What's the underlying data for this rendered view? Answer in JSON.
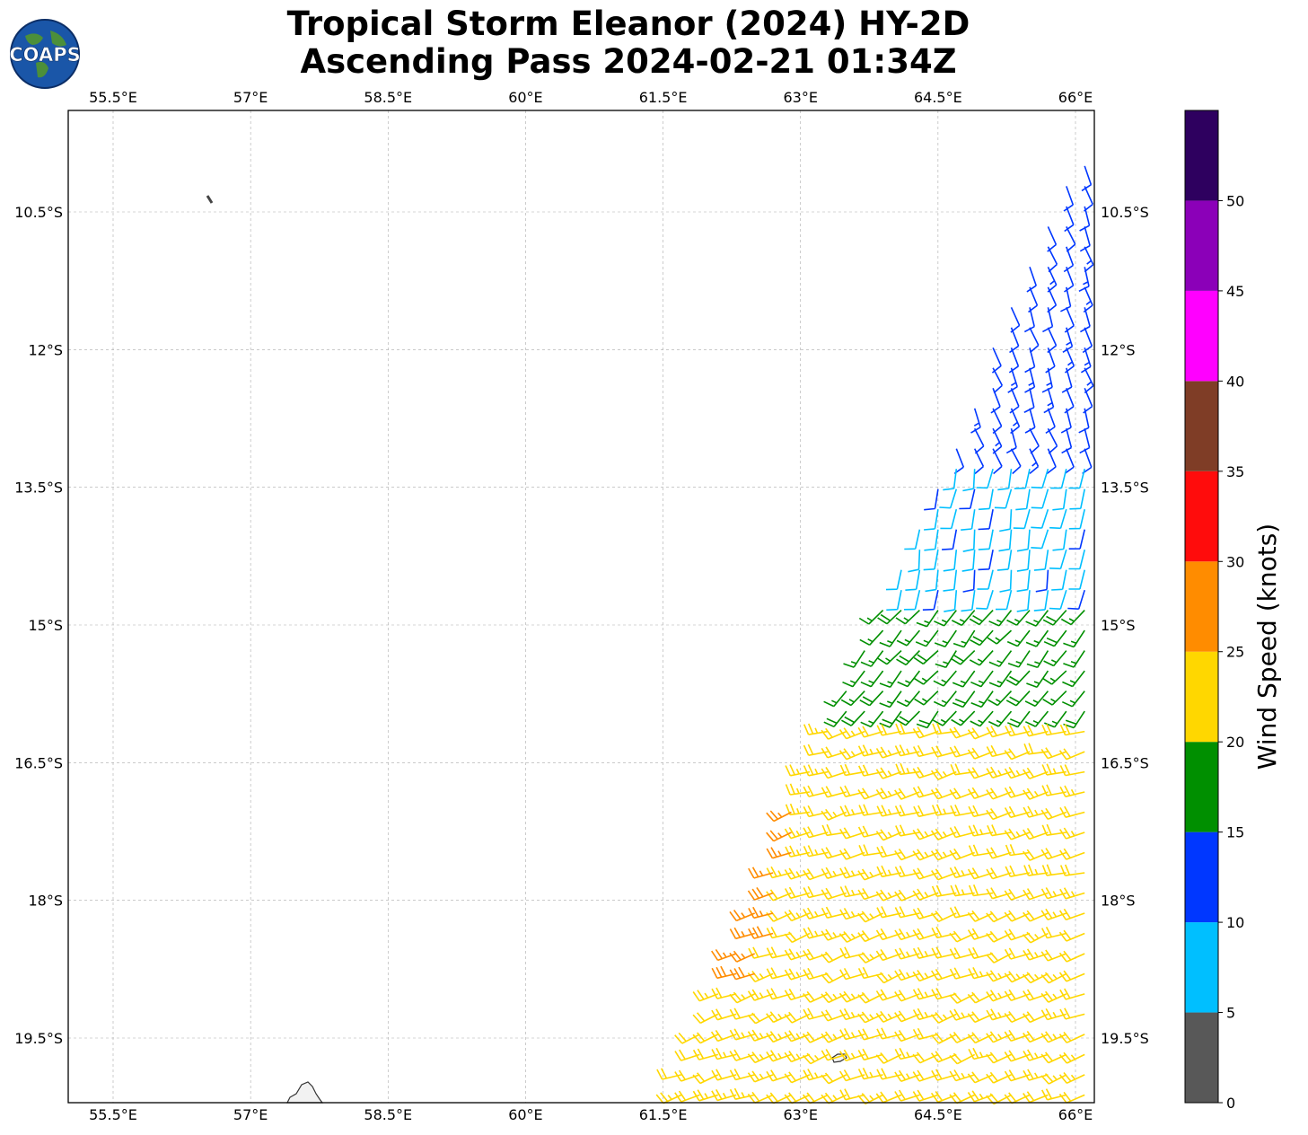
{
  "title": {
    "line1": "Tropical Storm Eleanor (2024) HY-2D",
    "line2": "Ascending Pass 2024-02-21 01:34Z"
  },
  "logo": {
    "text": "COAPS",
    "icon": "globe-icon"
  },
  "map": {
    "lon_range": [
      54.75,
      66.2
    ],
    "lat_range": [
      -20.7,
      -9.9
    ],
    "lon_ticks": [
      55.5,
      57,
      58.5,
      60,
      61.5,
      63,
      64.5,
      66
    ],
    "lon_tick_labels": [
      "55.5°E",
      "57°E",
      "58.5°E",
      "60°E",
      "61.5°E",
      "63°E",
      "64.5°E",
      "66°E"
    ],
    "lat_ticks": [
      -10.5,
      -12,
      -13.5,
      -15,
      -16.5,
      -18,
      -19.5
    ],
    "lat_tick_labels": [
      "10.5°S",
      "12°S",
      "13.5°S",
      "15°S",
      "16.5°S",
      "18°S",
      "19.5°S"
    ],
    "grid": true
  },
  "colorbar": {
    "label": "Wind Speed (knots)",
    "bins": [
      {
        "from": 0,
        "to": 5,
        "color": "#585858"
      },
      {
        "from": 5,
        "to": 10,
        "color": "#00bfff"
      },
      {
        "from": 10,
        "to": 15,
        "color": "#0037ff"
      },
      {
        "from": 15,
        "to": 20,
        "color": "#008f00"
      },
      {
        "from": 20,
        "to": 25,
        "color": "#ffd700"
      },
      {
        "from": 25,
        "to": 30,
        "color": "#ff8c00"
      },
      {
        "from": 30,
        "to": 35,
        "color": "#ff0c0c"
      },
      {
        "from": 35,
        "to": 40,
        "color": "#7f3d26"
      },
      {
        "from": 40,
        "to": 45,
        "color": "#ff00ff"
      },
      {
        "from": 45,
        "to": 50,
        "color": "#8b00b8"
      },
      {
        "from": 50,
        "to": 55,
        "color": "#2e005f"
      }
    ],
    "tick_labels": [
      "0",
      "5",
      "10",
      "15",
      "20",
      "25",
      "30",
      "35",
      "40",
      "45",
      "50"
    ]
  },
  "chart_data": {
    "type": "wind_barbs",
    "units": "knots",
    "swath": {
      "north_lat": -9.9,
      "south_lat": -20.7,
      "west_lon_at_north": 66.0,
      "west_lon_at_south": 61.3,
      "east_lon": 66.2
    },
    "wind_regions": [
      {
        "lat_range": [
          -9.9,
          -13.2
        ],
        "speed_kt": 12,
        "direction_deg": 160
      },
      {
        "lat_range": [
          -13.2,
          -14.8
        ],
        "speed_kt": 9,
        "direction_deg": 190
      },
      {
        "lat_range": [
          -14.8,
          -16.0
        ],
        "speed_kt": 17,
        "direction_deg": 220
      },
      {
        "lat_range": [
          -16.0,
          -18.0
        ],
        "speed_kt": 22,
        "direction_deg": 255
      },
      {
        "lat_range": [
          -18.0,
          -20.7
        ],
        "speed_kt": 22,
        "direction_deg": 250
      },
      {
        "lat_range": [
          -17.0,
          -19.0
        ],
        "speed_kt": 27,
        "direction_deg": 250
      }
    ]
  }
}
